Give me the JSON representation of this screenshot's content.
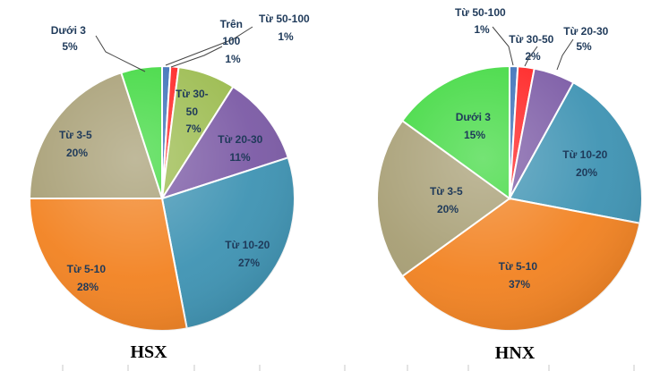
{
  "chart_data": [
    {
      "type": "pie",
      "title": "HSX",
      "slices": [
        {
          "label": "Từ 50-100",
          "value": 1,
          "display": "1%",
          "color": "#3a6fb8"
        },
        {
          "label": "Trên 100",
          "value": 1,
          "display": "1%",
          "color": "#ff2020"
        },
        {
          "label": "Từ 30-50",
          "value": 7,
          "display": "7%",
          "color": "#9bbb4e"
        },
        {
          "label": "Từ 20-30",
          "value": 11,
          "display": "11%",
          "color": "#7b5aa5"
        },
        {
          "label": "Từ 10-20",
          "value": 27,
          "display": "27%",
          "color": "#3e93b3"
        },
        {
          "label": "Từ 5-10",
          "value": 28,
          "display": "28%",
          "color": "#f28221"
        },
        {
          "label": "Từ 3-5",
          "value": 20,
          "display": "20%",
          "color": "#a79e74"
        },
        {
          "label": "Dưới 3",
          "value": 5,
          "display": "5%",
          "color": "#3fd93f"
        }
      ]
    },
    {
      "type": "pie",
      "title": "HNX",
      "slices": [
        {
          "label": "Từ 50-100",
          "value": 1,
          "display": "1%",
          "color": "#3a6fb8"
        },
        {
          "label": "Từ 30-50",
          "value": 2,
          "display": "2%",
          "color": "#ff2020"
        },
        {
          "label": "Từ 20-30",
          "value": 5,
          "display": "5%",
          "color": "#7b5aa5"
        },
        {
          "label": "Từ 10-20",
          "value": 20,
          "display": "20%",
          "color": "#3e93b3"
        },
        {
          "label": "Từ 5-10",
          "value": 37,
          "display": "37%",
          "color": "#f28221"
        },
        {
          "label": "Từ 3-5",
          "value": 20,
          "display": "20%",
          "color": "#a79e74"
        },
        {
          "label": "Dưới 3",
          "value": 15,
          "display": "15%",
          "color": "#3fd93f"
        }
      ]
    }
  ]
}
